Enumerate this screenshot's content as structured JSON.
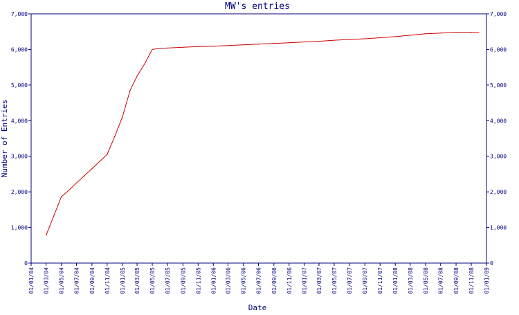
{
  "colors": {
    "axis": "#000080",
    "text": "#000080",
    "series": "#cc0000",
    "background": "#ffffff"
  },
  "chart_data": {
    "type": "line",
    "title": "MW's entries",
    "xlabel": "Date",
    "ylabel": "Number of Entries",
    "ylim": [
      0,
      7000
    ],
    "yticks": [
      0,
      1000,
      2000,
      3000,
      4000,
      5000,
      6000,
      7000
    ],
    "ytick_labels": [
      "0",
      "1,000",
      "2,000",
      "3,000",
      "4,000",
      "5,000",
      "6,000",
      "7,000"
    ],
    "y_axis_right": true,
    "xlim": [
      "2004-01-01",
      "2009-01-01"
    ],
    "xtick_dates": [
      "2004-01-01",
      "2004-03-01",
      "2004-05-01",
      "2004-07-01",
      "2004-09-01",
      "2004-11-01",
      "2005-01-01",
      "2005-03-01",
      "2005-05-01",
      "2005-07-01",
      "2005-09-01",
      "2005-11-01",
      "2006-01-01",
      "2006-03-01",
      "2006-05-01",
      "2006-07-01",
      "2006-09-01",
      "2006-11-01",
      "2007-01-01",
      "2007-03-01",
      "2007-05-01",
      "2007-07-01",
      "2007-09-01",
      "2007-11-01",
      "2008-01-01",
      "2008-03-01",
      "2008-05-01",
      "2008-07-01",
      "2008-09-01",
      "2008-11-01",
      "2009-01-01"
    ],
    "xtick_labels": [
      "01/01/04",
      "01/03/04",
      "01/05/04",
      "01/07/04",
      "01/09/04",
      "01/11/04",
      "01/01/05",
      "01/03/05",
      "01/05/05",
      "01/07/05",
      "01/09/05",
      "01/11/05",
      "01/01/06",
      "01/03/06",
      "01/05/06",
      "01/07/06",
      "01/09/06",
      "01/11/06",
      "01/01/07",
      "01/03/07",
      "01/05/07",
      "01/07/07",
      "01/09/07",
      "01/11/07",
      "01/01/08",
      "01/03/08",
      "01/05/08",
      "01/07/08",
      "01/09/08",
      "01/11/08",
      "01/01/09"
    ],
    "grid": false,
    "series": [
      {
        "x": [
          "2004-03-01",
          "2004-05-01",
          "2004-06-01",
          "2004-07-01",
          "2004-08-01",
          "2004-09-01",
          "2004-10-01",
          "2004-11-01",
          "2004-12-01",
          "2005-01-01",
          "2005-02-01",
          "2005-03-01",
          "2005-04-01",
          "2005-05-01",
          "2005-06-01",
          "2005-07-01",
          "2005-09-01",
          "2005-11-01",
          "2006-01-01",
          "2006-03-01",
          "2006-05-01",
          "2006-07-01",
          "2006-09-01",
          "2006-11-01",
          "2007-01-01",
          "2007-03-01",
          "2007-05-01",
          "2007-07-01",
          "2007-09-01",
          "2007-11-01",
          "2008-01-01",
          "2008-03-01",
          "2008-05-01",
          "2008-07-01",
          "2008-09-01",
          "2008-11-01",
          "2008-12-01"
        ],
        "values": [
          780,
          1860,
          2050,
          2250,
          2450,
          2650,
          2850,
          3050,
          3550,
          4100,
          4850,
          5250,
          5600,
          6000,
          6030,
          6040,
          6060,
          6080,
          6090,
          6110,
          6130,
          6150,
          6170,
          6190,
          6210,
          6230,
          6260,
          6280,
          6300,
          6330,
          6360,
          6400,
          6440,
          6460,
          6480,
          6480,
          6470
        ]
      }
    ]
  }
}
